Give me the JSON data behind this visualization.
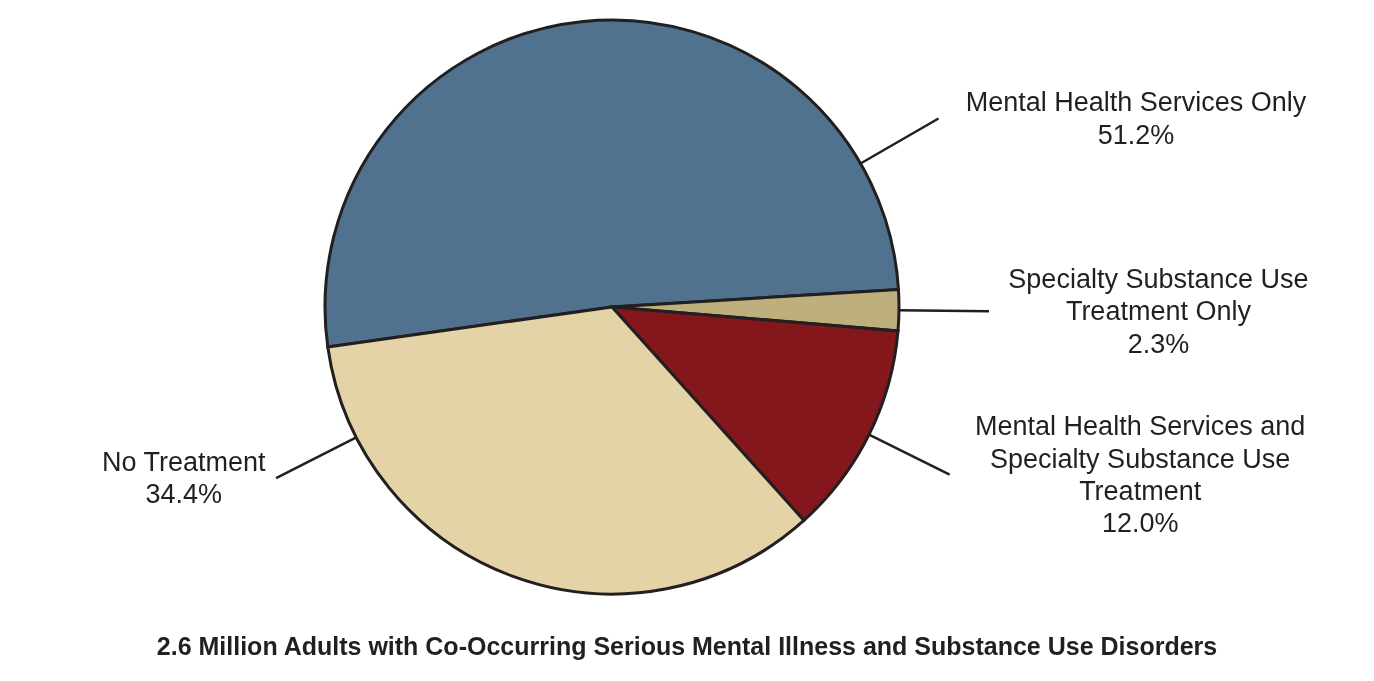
{
  "chart_data": {
    "type": "pie",
    "title": "2.6 Million Adults with Co-Occurring Serious Mental Illness and Substance Use Disorders",
    "categories": [
      "Mental Health Services Only",
      "Specialty Substance Use Treatment Only",
      "Mental Health Services and Specialty Substance Use Treatment",
      "No Treatment"
    ],
    "values": [
      51.2,
      2.3,
      12.0,
      34.4
    ],
    "value_labels": [
      "51.2%",
      "2.3%",
      "12.0%",
      "34.4%"
    ],
    "colors": [
      "#50728f",
      "#bdb07c",
      "#84171b",
      "#e3d3a7"
    ],
    "legend": false
  }
}
